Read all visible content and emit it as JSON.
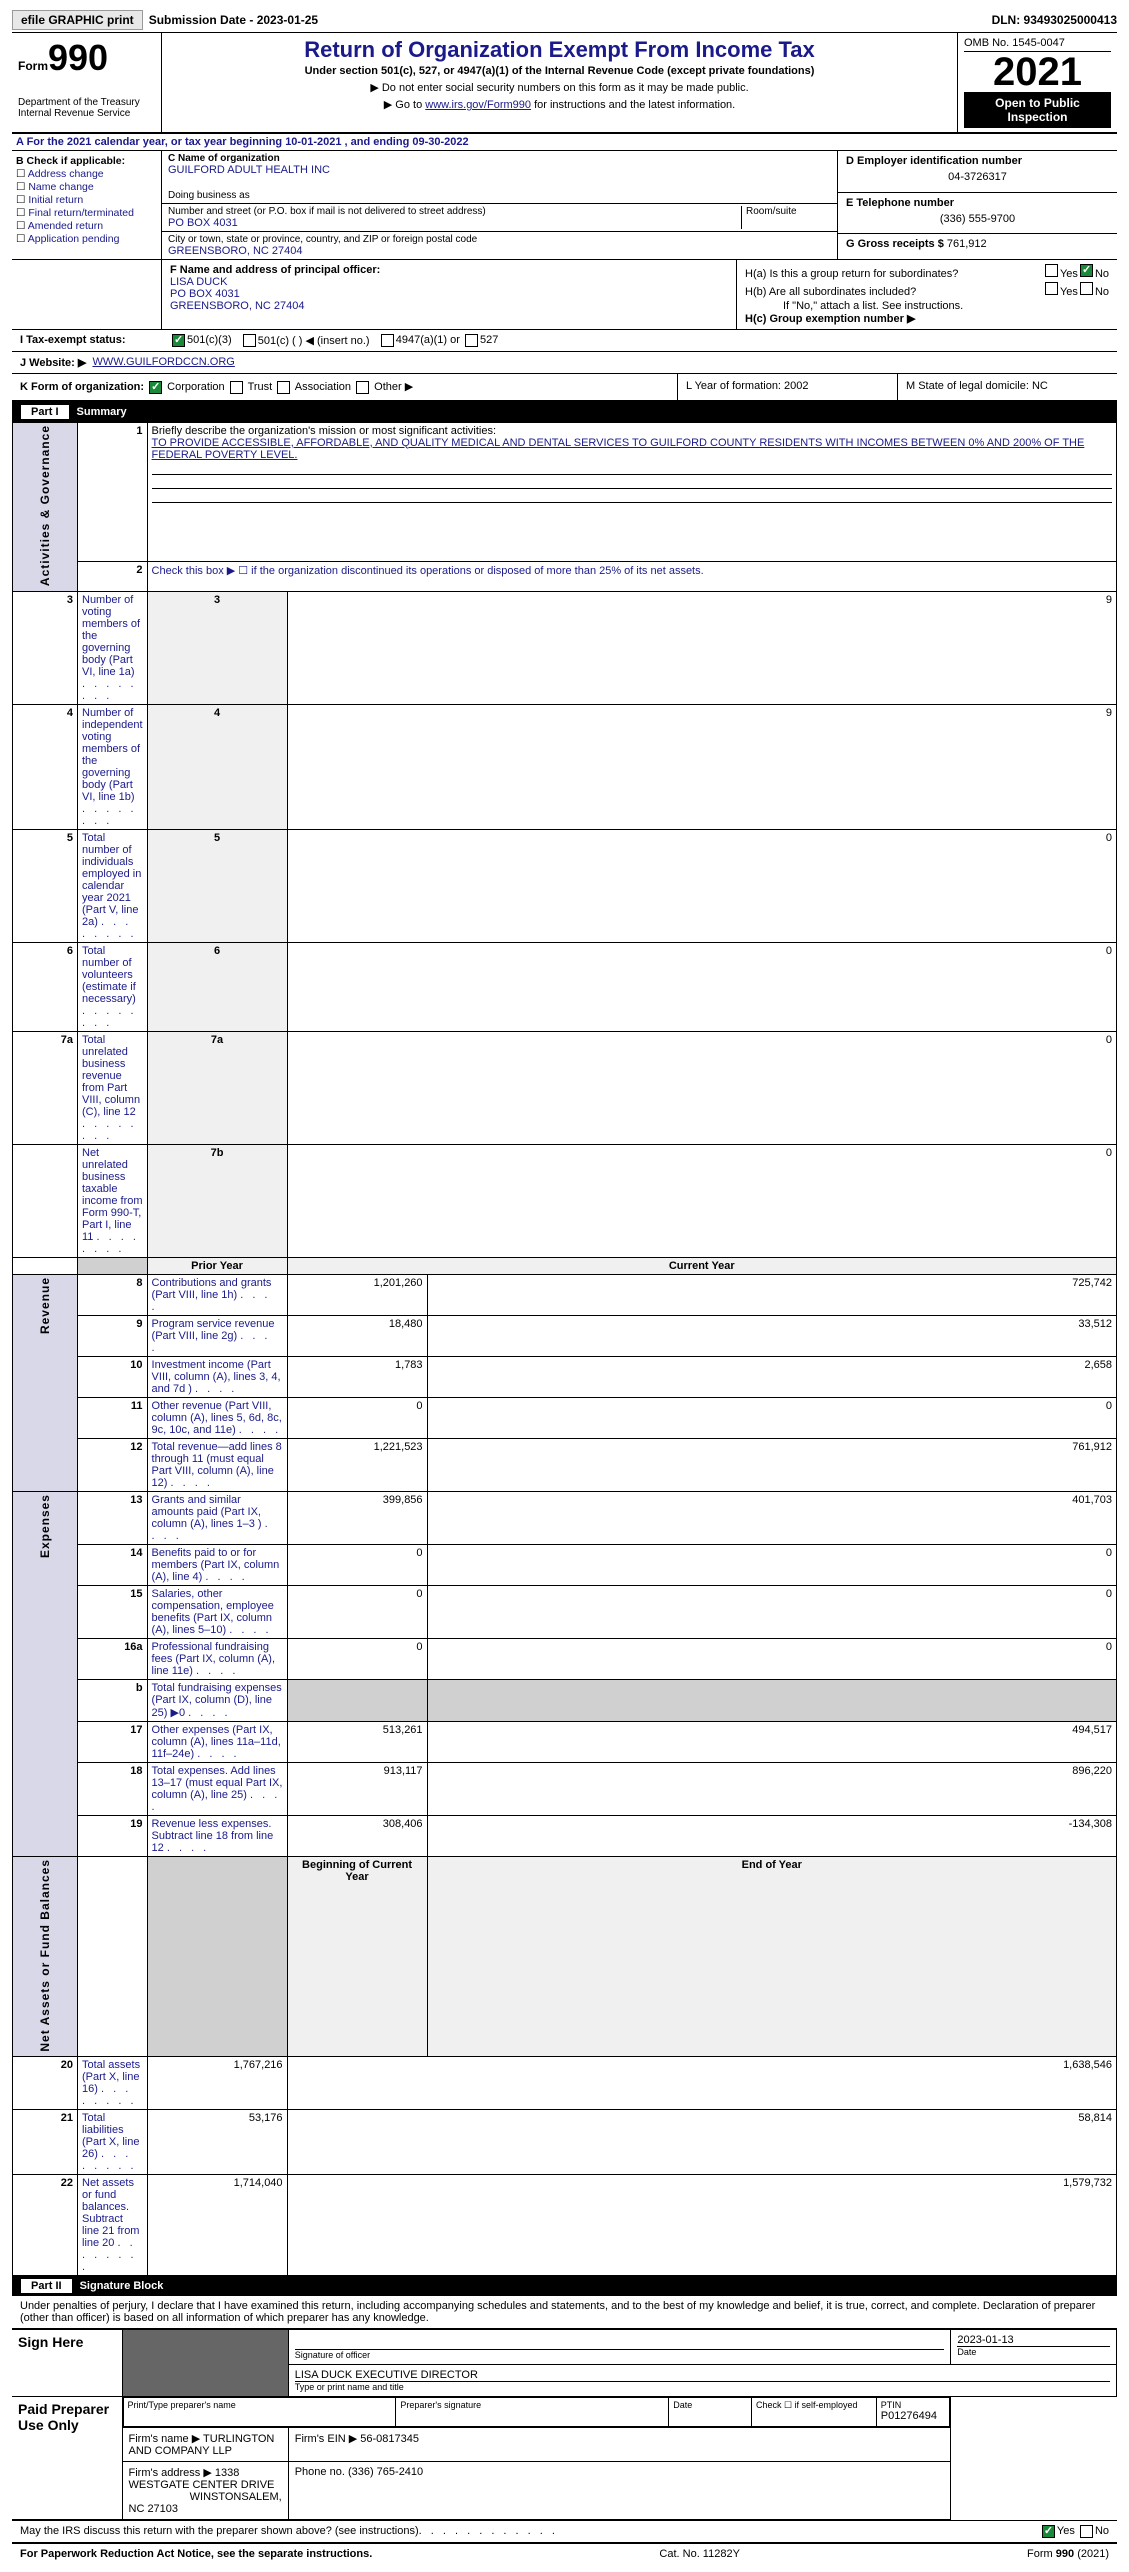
{
  "topbar": {
    "efile_btn": "efile GRAPHIC print",
    "submission": "Submission Date - 2023-01-25",
    "dln": "DLN: 93493025000413"
  },
  "header": {
    "form_label": "Form",
    "form_number": "990",
    "title": "Return of Organization Exempt From Income Tax",
    "subtitle": "Under section 501(c), 527, or 4947(a)(1) of the Internal Revenue Code (except private foundations)",
    "line1": "▶ Do not enter social security numbers on this form as it may be made public.",
    "line2_pre": "▶ Go to ",
    "line2_link": "www.irs.gov/Form990",
    "line2_post": " for instructions and the latest information.",
    "dept": "Department of the Treasury\nInternal Revenue Service",
    "omb": "OMB No. 1545-0047",
    "year": "2021",
    "otp": "Open to Public Inspection"
  },
  "row_a": "A For the 2021 calendar year, or tax year beginning 10-01-2021    , and ending 09-30-2022",
  "section_b": {
    "label": "B Check if applicable:",
    "checks": [
      "Address change",
      "Name change",
      "Initial return",
      "Final return/terminated",
      "Amended return",
      "Application pending"
    ]
  },
  "section_c": {
    "name_label": "C Name of organization",
    "name": "GUILFORD ADULT HEALTH INC",
    "dba_label": "Doing business as",
    "dba": "",
    "addr_label": "Number and street (or P.O. box if mail is not delivered to street address)",
    "room_label": "Room/suite",
    "addr": "PO BOX 4031",
    "city_label": "City or town, state or province, country, and ZIP or foreign postal code",
    "city": "GREENSBORO, NC  27404"
  },
  "section_d": {
    "ein_label": "D Employer identification number",
    "ein": "04-3726317",
    "tel_label": "E Telephone number",
    "tel": "(336) 555-9700",
    "gross_label": "G Gross receipts $",
    "gross": "761,912"
  },
  "section_f": {
    "label": "F Name and address of principal officer:",
    "name": "LISA DUCK",
    "addr1": "PO BOX 4031",
    "addr2": "GREENSBORO, NC  27404"
  },
  "section_h": {
    "ha": "H(a)  Is this a group return for subordinates?",
    "hb": "H(b)  Are all subordinates included?",
    "hb_note": "If \"No,\" attach a list. See instructions.",
    "hc": "H(c)  Group exemption number ▶",
    "yes": "Yes",
    "no": "No"
  },
  "row_i": {
    "label": "I   Tax-exempt status:",
    "opt1": "501(c)(3)",
    "opt2": "501(c) (  ) ◀ (insert no.)",
    "opt3": "4947(a)(1) or",
    "opt4": "527"
  },
  "row_j": {
    "label": "J  Website: ▶",
    "url": "WWW.GUILFORDCCN.ORG"
  },
  "row_k": {
    "k": "K Form of organization:",
    "corp": "Corporation",
    "trust": "Trust",
    "assoc": "Association",
    "other": "Other ▶",
    "l": "L Year of formation: 2002",
    "m": "M State of legal domicile: NC"
  },
  "part1": {
    "hdr_part": "Part I",
    "hdr_title": "Summary",
    "line1_label": "Briefly describe the organization's mission or most significant activities:",
    "line1_text": "TO PROVIDE ACCESSIBLE, AFFORDABLE, AND QUALITY MEDICAL AND DENTAL SERVICES TO GUILFORD COUNTY RESIDENTS WITH INCOMES BETWEEN 0% AND 200% OF THE FEDERAL POVERTY LEVEL.",
    "line2": "Check this box ▶ ☐ if the organization discontinued its operations or disposed of more than 25% of its net assets.",
    "sidebar_ag": "Activities & Governance",
    "sidebar_rev": "Revenue",
    "sidebar_exp": "Expenses",
    "sidebar_na": "Net Assets or Fund Balances",
    "col_prior": "Prior Year",
    "col_curr": "Current Year",
    "col_beg": "Beginning of Current Year",
    "col_end": "End of Year",
    "rows_ag": [
      {
        "n": "3",
        "d": "Number of voting members of the governing body (Part VI, line 1a)",
        "b": "3",
        "v": "9"
      },
      {
        "n": "4",
        "d": "Number of independent voting members of the governing body (Part VI, line 1b)",
        "b": "4",
        "v": "9"
      },
      {
        "n": "5",
        "d": "Total number of individuals employed in calendar year 2021 (Part V, line 2a)",
        "b": "5",
        "v": "0"
      },
      {
        "n": "6",
        "d": "Total number of volunteers (estimate if necessary)",
        "b": "6",
        "v": "0"
      },
      {
        "n": "7a",
        "d": "Total unrelated business revenue from Part VIII, column (C), line 12",
        "b": "7a",
        "v": "0"
      },
      {
        "n": "",
        "d": "Net unrelated business taxable income from Form 990-T, Part I, line 11",
        "b": "7b",
        "v": "0"
      }
    ],
    "rows_rev": [
      {
        "n": "8",
        "d": "Contributions and grants (Part VIII, line 1h)",
        "p": "1,201,260",
        "c": "725,742"
      },
      {
        "n": "9",
        "d": "Program service revenue (Part VIII, line 2g)",
        "p": "18,480",
        "c": "33,512"
      },
      {
        "n": "10",
        "d": "Investment income (Part VIII, column (A), lines 3, 4, and 7d )",
        "p": "1,783",
        "c": "2,658"
      },
      {
        "n": "11",
        "d": "Other revenue (Part VIII, column (A), lines 5, 6d, 8c, 9c, 10c, and 11e)",
        "p": "0",
        "c": "0"
      },
      {
        "n": "12",
        "d": "Total revenue—add lines 8 through 11 (must equal Part VIII, column (A), line 12)",
        "p": "1,221,523",
        "c": "761,912"
      }
    ],
    "rows_exp": [
      {
        "n": "13",
        "d": "Grants and similar amounts paid (Part IX, column (A), lines 1–3 )",
        "p": "399,856",
        "c": "401,703"
      },
      {
        "n": "14",
        "d": "Benefits paid to or for members (Part IX, column (A), line 4)",
        "p": "0",
        "c": "0"
      },
      {
        "n": "15",
        "d": "Salaries, other compensation, employee benefits (Part IX, column (A), lines 5–10)",
        "p": "0",
        "c": "0"
      },
      {
        "n": "16a",
        "d": "Professional fundraising fees (Part IX, column (A), line 11e)",
        "p": "0",
        "c": "0"
      },
      {
        "n": "b",
        "d": "Total fundraising expenses (Part IX, column (D), line 25) ▶0",
        "p": "",
        "c": "",
        "shade": true
      },
      {
        "n": "17",
        "d": "Other expenses (Part IX, column (A), lines 11a–11d, 11f–24e)",
        "p": "513,261",
        "c": "494,517"
      },
      {
        "n": "18",
        "d": "Total expenses. Add lines 13–17 (must equal Part IX, column (A), line 25)",
        "p": "913,117",
        "c": "896,220"
      },
      {
        "n": "19",
        "d": "Revenue less expenses. Subtract line 18 from line 12",
        "p": "308,406",
        "c": "-134,308"
      }
    ],
    "rows_na": [
      {
        "n": "20",
        "d": "Total assets (Part X, line 16)",
        "p": "1,767,216",
        "c": "1,638,546"
      },
      {
        "n": "21",
        "d": "Total liabilities (Part X, line 26)",
        "p": "53,176",
        "c": "58,814"
      },
      {
        "n": "22",
        "d": "Net assets or fund balances. Subtract line 21 from line 20",
        "p": "1,714,040",
        "c": "1,579,732"
      }
    ]
  },
  "part2": {
    "hdr_part": "Part II",
    "hdr_title": "Signature Block",
    "penalty": "Under penalties of perjury, I declare that I have examined this return, including accompanying schedules and statements, and to the best of my knowledge and belief, it is true, correct, and complete. Declaration of preparer (other than officer) is based on all information of which preparer has any knowledge.",
    "sign_here": "Sign Here",
    "sig_officer": "Signature of officer",
    "sig_date": "2023-01-13",
    "date_label": "Date",
    "officer_name": "LISA DUCK  EXECUTIVE DIRECTOR",
    "name_label": "Type or print name and title",
    "paid": "Paid Preparer Use Only",
    "prep_name_label": "Print/Type preparer's name",
    "prep_sig_label": "Preparer's signature",
    "check_self": "Check ☐ if self-employed",
    "ptin_label": "PTIN",
    "ptin": "P01276494",
    "firm_name_label": "Firm's name  ▶",
    "firm_name": "TURLINGTON AND COMPANY LLP",
    "firm_ein_label": "Firm's EIN ▶",
    "firm_ein": "56-0817345",
    "firm_addr_label": "Firm's address ▶",
    "firm_addr": "1338 WESTGATE CENTER DRIVE",
    "firm_city": "WINSTONSALEM, NC  27103",
    "phone_label": "Phone no.",
    "phone": "(336) 765-2410",
    "discuss": "May the IRS discuss this return with the preparer shown above? (see instructions)"
  },
  "footer": {
    "left": "For Paperwork Reduction Act Notice, see the separate instructions.",
    "mid": "Cat. No. 11282Y",
    "right": "Form 990 (2021)"
  }
}
